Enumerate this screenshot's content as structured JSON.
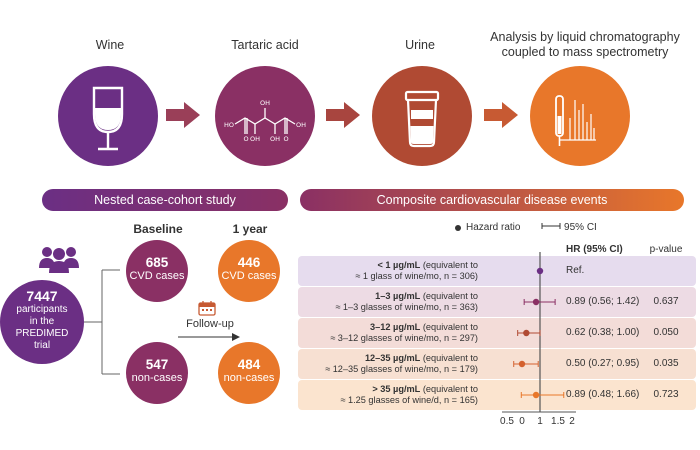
{
  "colors": {
    "purple": "#6b2f84",
    "plum": "#8a3064",
    "rust": "#b04a33",
    "orange": "#e8772a",
    "arrow": "#9a3f58",
    "row_bg": [
      "#e6dcee",
      "#eddbe4",
      "#f3dcd8",
      "#f7e0d2",
      "#fbe4cf"
    ],
    "row_mark": [
      "#6b2f84",
      "#8a3064",
      "#b04a33",
      "#d4612e",
      "#e8772a"
    ]
  },
  "top": {
    "wine": "Wine",
    "tartaric_acid": "Tartaric acid",
    "urine": "Urine",
    "analysis_line1": "Analysis by liquid chromatography",
    "analysis_line2": "coupled to mass spectrometry"
  },
  "banners": {
    "left": "Nested case-cohort study",
    "right": "Composite cardiovascular disease events"
  },
  "legend": {
    "hazard_ratio": "Hazard ratio",
    "ci": "95% CI"
  },
  "cohort": {
    "total_number": "7447",
    "total_line1": "participants",
    "total_line2": "in the",
    "total_line3": "PREDIMED",
    "total_line4": "trial",
    "baseline_label": "Baseline",
    "year_label": "1 year",
    "follow_up": "Follow-up",
    "baseline_cases_n": "685",
    "baseline_cases_lbl": "CVD cases",
    "year_cases_n": "446",
    "year_cases_lbl": "CVD cases",
    "baseline_non_n": "547",
    "baseline_non_lbl": "non-cases",
    "year_non_n": "484",
    "year_non_lbl": "non-cases"
  },
  "table_headers": {
    "hr": "HR (95% CI)",
    "pvalue": "p-value"
  },
  "rows": [
    {
      "range": "< 1 µg/mL",
      "rest1": " (equivalent to",
      "line2": "≈ 1 glass of wine/mo, n = 306)",
      "hr_text": "Ref.",
      "p": ""
    },
    {
      "range": "1–3 µg/mL",
      "rest1": " (equivalent to",
      "line2": "≈ 1–3 glasses of wine/mo, n = 363)",
      "hr_text": "0.89 (0.56; 1.42)",
      "p": "0.637"
    },
    {
      "range": "3–12 µg/mL",
      "rest1": " (equivalent to",
      "line2": "≈ 3–12 glasses of wine/mo, n = 297)",
      "hr_text": "0.62 (0.38; 1.00)",
      "p": "0.050"
    },
    {
      "range": "12–35 µg/mL",
      "rest1": " (equivalent to",
      "line2": "≈ 12–35 glasses of wine/mo, n = 179)",
      "hr_text": "0.50 (0.27; 0.95)",
      "p": "0.035"
    },
    {
      "range": "> 35 µg/mL",
      "rest1": " (equivalent to",
      "line2": "≈ 1.25 glasses of wine/d, n = 165)",
      "hr_text": "0.89 (0.48; 1.66)",
      "p": "0.723"
    }
  ],
  "forest": {
    "hr": [
      1.0,
      0.89,
      0.62,
      0.5,
      0.89
    ],
    "lo": [
      null,
      0.56,
      0.38,
      0.27,
      0.48
    ],
    "hi": [
      null,
      1.42,
      1.0,
      0.95,
      1.66
    ],
    "ticks": [
      "0.5",
      "0",
      "1",
      "1.5",
      "2"
    ]
  }
}
